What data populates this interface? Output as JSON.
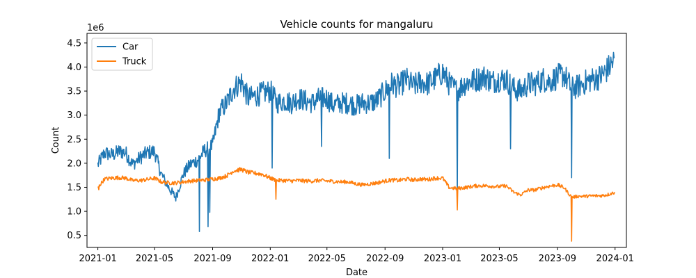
{
  "chart_data": {
    "type": "line",
    "title": "Vehicle counts for mangaluru",
    "xlabel": "Date",
    "ylabel": "Count",
    "y_multiplier_label": "1e6",
    "y_multiplier": 1000000,
    "xlim": [
      "2020-12-09",
      "2024-01-25"
    ],
    "ylim": [
      250000,
      4700000
    ],
    "x_ticks": [
      "2021-01",
      "2021-05",
      "2021-09",
      "2022-01",
      "2022-05",
      "2022-09",
      "2023-01",
      "2023-05",
      "2023-09",
      "2024-01"
    ],
    "y_ticks": [
      500000,
      1000000,
      1500000,
      2000000,
      2500000,
      3000000,
      3500000,
      4000000,
      4500000
    ],
    "y_tick_labels": [
      "0.5",
      "1.0",
      "1.5",
      "2.0",
      "2.5",
      "3.0",
      "3.5",
      "4.0",
      "4.5"
    ],
    "grid": false,
    "legend_placement": "top-left",
    "x": [
      "2021-01-01",
      "2021-01-15",
      "2021-02-01",
      "2021-02-15",
      "2021-03-01",
      "2021-03-15",
      "2021-04-01",
      "2021-04-15",
      "2021-05-01",
      "2021-05-15",
      "2021-06-01",
      "2021-06-15",
      "2021-07-01",
      "2021-07-15",
      "2021-08-01",
      "2021-08-15",
      "2021-09-01",
      "2021-09-15",
      "2021-10-01",
      "2021-10-15",
      "2021-11-01",
      "2021-11-15",
      "2021-12-01",
      "2021-12-15",
      "2022-01-01",
      "2022-01-15",
      "2022-02-01",
      "2022-02-15",
      "2022-03-01",
      "2022-03-15",
      "2022-04-01",
      "2022-04-15",
      "2022-05-01",
      "2022-05-15",
      "2022-06-01",
      "2022-06-15",
      "2022-07-01",
      "2022-07-15",
      "2022-08-01",
      "2022-08-15",
      "2022-09-01",
      "2022-09-15",
      "2022-10-01",
      "2022-10-15",
      "2022-11-01",
      "2022-11-15",
      "2022-12-01",
      "2022-12-15",
      "2023-01-01",
      "2023-01-15",
      "2023-02-01",
      "2023-02-15",
      "2023-03-01",
      "2023-03-15",
      "2023-04-01",
      "2023-04-15",
      "2023-05-01",
      "2023-05-15",
      "2023-06-01",
      "2023-06-15",
      "2023-07-01",
      "2023-07-15",
      "2023-08-01",
      "2023-08-15",
      "2023-09-01",
      "2023-09-15",
      "2023-10-01",
      "2023-10-15",
      "2023-11-01",
      "2023-11-15",
      "2023-12-01",
      "2023-12-15",
      "2023-12-31"
    ],
    "series": [
      {
        "name": "Car",
        "color": "#1f77b4",
        "values": [
          2000000,
          2250000,
          2200000,
          2280000,
          2250000,
          2000000,
          2150000,
          2250000,
          2280000,
          1800000,
          1500000,
          1300000,
          1800000,
          2000000,
          2100000,
          2300000,
          2400000,
          3100000,
          3300000,
          3600000,
          3750000,
          3400000,
          3450000,
          3500000,
          3550000,
          3300000,
          3350000,
          3300000,
          3400000,
          3350000,
          3300000,
          3400000,
          3400000,
          3250000,
          3300000,
          3300000,
          3250000,
          3300000,
          3300000,
          3350000,
          3550000,
          3700000,
          3650000,
          3800000,
          3650000,
          3750000,
          3700000,
          3800000,
          3950000,
          3700000,
          3550000,
          3700000,
          3750000,
          3800000,
          3850000,
          3750000,
          3800000,
          3800000,
          3600000,
          3550000,
          3700000,
          3700000,
          3800000,
          3750000,
          3850000,
          3900000,
          3600000,
          3650000,
          3750000,
          3800000,
          3850000,
          4000000,
          4200000
        ]
      },
      {
        "name": "Truck",
        "color": "#ff7f0e",
        "values": [
          1500000,
          1680000,
          1700000,
          1710000,
          1700000,
          1650000,
          1650000,
          1670000,
          1700000,
          1620000,
          1600000,
          1600000,
          1620000,
          1640000,
          1650000,
          1660000,
          1680000,
          1700000,
          1750000,
          1850000,
          1880000,
          1820000,
          1800000,
          1780000,
          1700000,
          1650000,
          1650000,
          1640000,
          1650000,
          1640000,
          1640000,
          1650000,
          1640000,
          1630000,
          1620000,
          1620000,
          1580000,
          1560000,
          1580000,
          1600000,
          1640000,
          1660000,
          1650000,
          1680000,
          1660000,
          1680000,
          1670000,
          1700000,
          1700000,
          1500000,
          1480000,
          1500000,
          1520000,
          1540000,
          1540000,
          1530000,
          1520000,
          1540000,
          1400000,
          1350000,
          1450000,
          1450000,
          1500000,
          1530000,
          1560000,
          1500000,
          1300000,
          1320000,
          1320000,
          1330000,
          1330000,
          1350000,
          1400000
        ]
      }
    ],
    "annotations": {
      "Car": [
        [
          "2021-08-04",
          580000
        ],
        [
          "2021-08-22",
          680000
        ],
        [
          "2021-08-26",
          980000
        ],
        [
          "2022-01-05",
          1900000
        ],
        [
          "2022-04-20",
          2350000
        ],
        [
          "2022-09-10",
          2100000
        ],
        [
          "2023-02-01",
          1250000
        ],
        [
          "2023-05-25",
          2300000
        ],
        [
          "2023-10-01",
          1700000
        ]
      ],
      "Truck": [
        [
          "2021-01-03",
          1450000
        ],
        [
          "2022-01-13",
          1250000
        ],
        [
          "2023-02-01",
          1030000
        ],
        [
          "2023-10-01",
          380000
        ]
      ]
    }
  }
}
